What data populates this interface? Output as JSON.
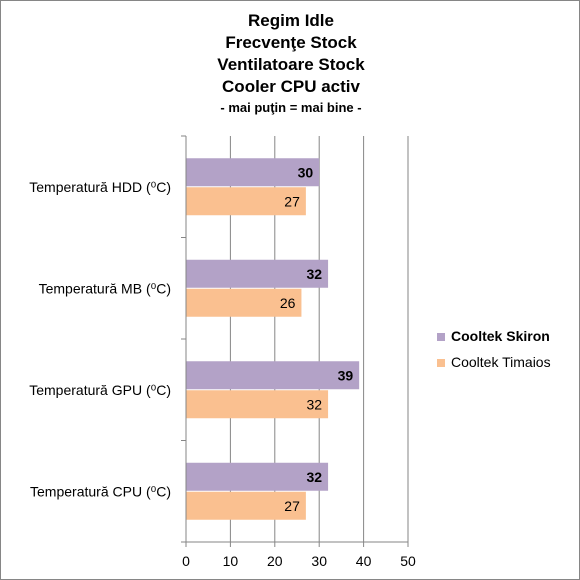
{
  "chart_data": {
    "type": "bar",
    "orientation": "horizontal",
    "title_lines": [
      "Regim Idle",
      "Frecvenţe Stock",
      "Ventilatoare Stock",
      "Cooler CPU activ"
    ],
    "subtitle": "- mai puţin = mai bine -",
    "categories": [
      "Temperatură  HDD (⁰C)",
      "Temperatură  MB (⁰C)",
      "Temperatură  GPU (⁰C)",
      "Temperatură  CPU (⁰C)"
    ],
    "series": [
      {
        "name": "Cooltek Skiron",
        "values": [
          30,
          32,
          39,
          32
        ],
        "color": "#b3a2c7",
        "bold": true
      },
      {
        "name": "Cooltek Timaios",
        "values": [
          27,
          26,
          32,
          27
        ],
        "color": "#fac090",
        "bold": false
      }
    ],
    "xlim": [
      0,
      50
    ],
    "xticks": [
      0,
      10,
      20,
      30,
      40,
      50
    ],
    "grid": true,
    "legend_position": "right"
  }
}
